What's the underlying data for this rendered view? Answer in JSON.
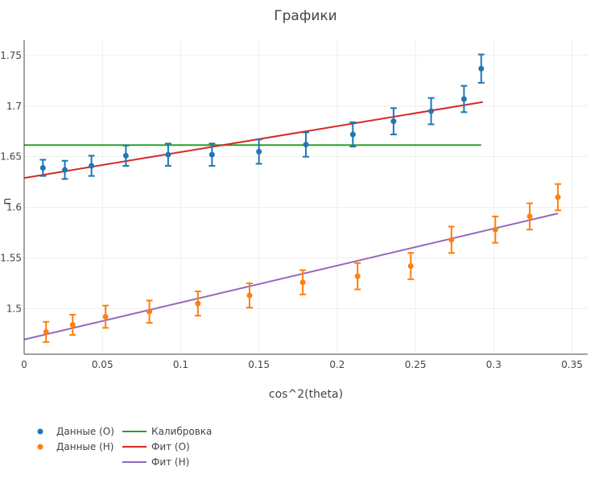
{
  "chart_data": {
    "type": "scatter",
    "title": "Графики",
    "xlabel": "cos^2(theta)",
    "ylabel": "n",
    "xlim": [
      0,
      0.36
    ],
    "ylim": [
      1.455,
      1.765
    ],
    "x_ticks": [
      0,
      0.05,
      0.1,
      0.15,
      0.2,
      0.25,
      0.3,
      0.35
    ],
    "x_tick_labels": [
      "0",
      "0.05",
      "0.1",
      "0.15",
      "0.2",
      "0.25",
      "0.3",
      "0.35"
    ],
    "y_ticks": [
      1.5,
      1.55,
      1.6,
      1.65,
      1.7,
      1.75
    ],
    "y_tick_labels": [
      "1.5",
      "1.55",
      "1.6",
      "1.65",
      "1.7",
      "1.75"
    ],
    "grid": true,
    "legend_position": "bottom-left",
    "series": [
      {
        "name": "Данные (О)",
        "kind": "markers",
        "color": "#1f77b4",
        "points": [
          {
            "x": 0.012,
            "y": 1.639,
            "err": 0.008
          },
          {
            "x": 0.026,
            "y": 1.637,
            "err": 0.009
          },
          {
            "x": 0.043,
            "y": 1.641,
            "err": 0.01
          },
          {
            "x": 0.065,
            "y": 1.651,
            "err": 0.01
          },
          {
            "x": 0.092,
            "y": 1.652,
            "err": 0.011
          },
          {
            "x": 0.12,
            "y": 1.652,
            "err": 0.011
          },
          {
            "x": 0.15,
            "y": 1.655,
            "err": 0.012
          },
          {
            "x": 0.18,
            "y": 1.662,
            "err": 0.012
          },
          {
            "x": 0.21,
            "y": 1.672,
            "err": 0.012
          },
          {
            "x": 0.236,
            "y": 1.685,
            "err": 0.013
          },
          {
            "x": 0.26,
            "y": 1.695,
            "err": 0.013
          },
          {
            "x": 0.281,
            "y": 1.707,
            "err": 0.013
          },
          {
            "x": 0.292,
            "y": 1.737,
            "err": 0.014
          }
        ]
      },
      {
        "name": "Данные (Н)",
        "kind": "markers",
        "color": "#ff7f0e",
        "points": [
          {
            "x": 0.014,
            "y": 1.477,
            "err": 0.01
          },
          {
            "x": 0.031,
            "y": 1.484,
            "err": 0.01
          },
          {
            "x": 0.052,
            "y": 1.492,
            "err": 0.011
          },
          {
            "x": 0.08,
            "y": 1.497,
            "err": 0.011
          },
          {
            "x": 0.111,
            "y": 1.505,
            "err": 0.012
          },
          {
            "x": 0.144,
            "y": 1.513,
            "err": 0.012
          },
          {
            "x": 0.178,
            "y": 1.526,
            "err": 0.012
          },
          {
            "x": 0.213,
            "y": 1.532,
            "err": 0.013
          },
          {
            "x": 0.247,
            "y": 1.542,
            "err": 0.013
          },
          {
            "x": 0.273,
            "y": 1.568,
            "err": 0.013
          },
          {
            "x": 0.301,
            "y": 1.578,
            "err": 0.013
          },
          {
            "x": 0.323,
            "y": 1.591,
            "err": 0.013
          },
          {
            "x": 0.341,
            "y": 1.61,
            "err": 0.013
          }
        ]
      },
      {
        "name": "Калибровка",
        "kind": "line",
        "color": "#2ca02c",
        "points": [
          {
            "x": 0,
            "y": 1.6615
          },
          {
            "x": 0.292,
            "y": 1.6615
          }
        ]
      },
      {
        "name": "Фит (О)",
        "kind": "line",
        "color": "#d62728",
        "points": [
          {
            "x": 0,
            "y": 1.629
          },
          {
            "x": 0.293,
            "y": 1.704
          }
        ]
      },
      {
        "name": "Фит (Н)",
        "kind": "line",
        "color": "#9467bd",
        "points": [
          {
            "x": 0,
            "y": 1.4695
          },
          {
            "x": 0.341,
            "y": 1.594
          }
        ]
      }
    ]
  }
}
